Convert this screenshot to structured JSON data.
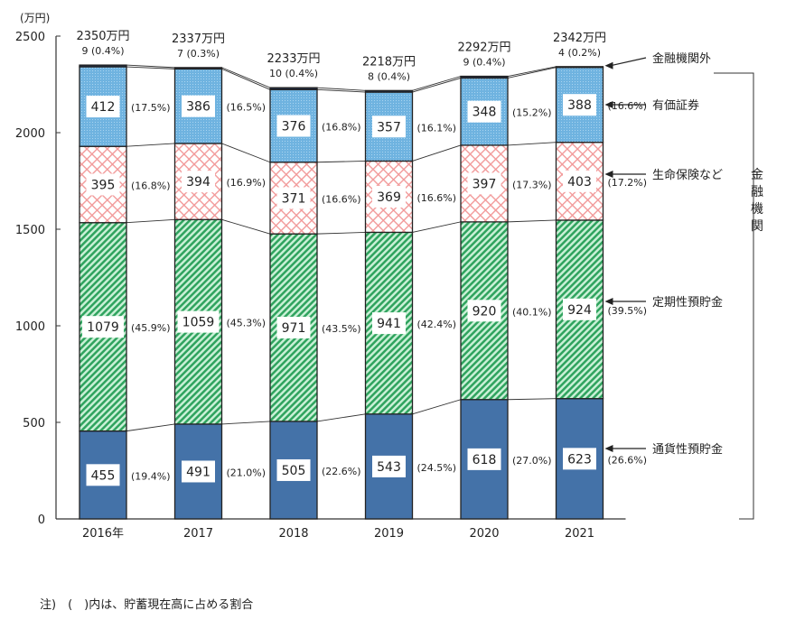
{
  "chart_data": {
    "type": "bar",
    "stacked": true,
    "ylabel": "(万円)",
    "ylim": [
      0,
      2500
    ],
    "yticks": [
      0,
      500,
      1000,
      1500,
      2000,
      2500
    ],
    "grid": false,
    "categories": [
      "2016年",
      "2017",
      "2018",
      "2019",
      "2020",
      "2021"
    ],
    "totals": [
      "2350万円",
      "2337万円",
      "2233万円",
      "2218万円",
      "2292万円",
      "2342万円"
    ],
    "series": [
      {
        "name": "通貨性預貯金",
        "color": "#4472a8",
        "pattern": "solid",
        "values": [
          455,
          491,
          505,
          543,
          618,
          623
        ],
        "percents": [
          "(19.4%)",
          "(21.0%)",
          "(22.6%)",
          "(24.5%)",
          "(27.0%)",
          "(26.6%)"
        ]
      },
      {
        "name": "定期性預貯金",
        "color": "#3cb371",
        "pattern": "diagonal-stripes",
        "values": [
          1079,
          1059,
          971,
          941,
          920,
          924
        ],
        "percents": [
          "(45.9%)",
          "(45.3%)",
          "(43.5%)",
          "(42.4%)",
          "(40.1%)",
          "(39.5%)"
        ]
      },
      {
        "name": "生命保険など",
        "color": "#f4a3a3",
        "pattern": "crosshatch",
        "values": [
          395,
          394,
          371,
          369,
          397,
          403
        ],
        "percents": [
          "(16.8%)",
          "(16.9%)",
          "(16.6%)",
          "(16.6%)",
          "(17.3%)",
          "(17.2%)"
        ]
      },
      {
        "name": "有価証券",
        "color": "#6fb3e0",
        "pattern": "dotted",
        "values": [
          412,
          386,
          376,
          357,
          348,
          388
        ],
        "percents": [
          "(17.5%)",
          "(16.5%)",
          "(16.8%)",
          "(16.1%)",
          "(15.2%)",
          "(16.6%)"
        ]
      },
      {
        "name": "金融機関外",
        "color": "#1f2d4a",
        "pattern": "solid",
        "values": [
          9,
          7,
          10,
          8,
          9,
          4
        ],
        "percents": [
          "(0.4%)",
          "(0.3%)",
          "(0.4%)",
          "(0.4%)",
          "(0.4%)",
          "(0.2%)"
        ]
      }
    ],
    "bracket_label": "金融機関",
    "note": "注)　(　)内は、貯蓄現在高に占める割合"
  }
}
